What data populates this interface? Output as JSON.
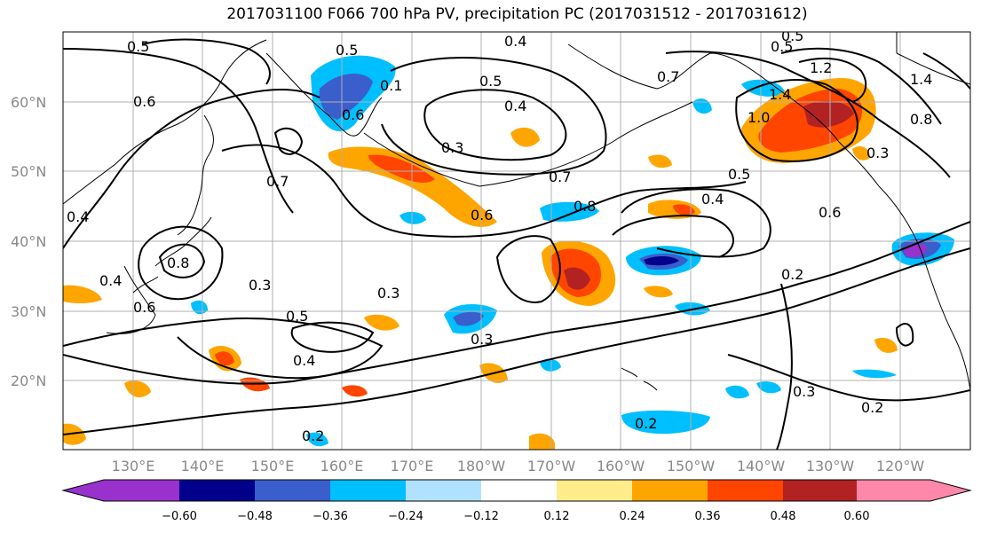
{
  "title": "2017031100 F066 700 hPa PV, precipitation PC (2017031512 - 2017031612)",
  "lat_labels": [
    "60°N",
    "50°N",
    "40°N",
    "30°N",
    "20°N"
  ],
  "lon_labels": [
    "130°E",
    "140°E",
    "150°E",
    "160°E",
    "170°E",
    "180°W",
    "170°W",
    "160°W",
    "150°W",
    "140°W",
    "130°W",
    "120°W"
  ],
  "colorbar": {
    "colors": [
      "#9932cc",
      "#00008b",
      "#3a5fcd",
      "#00bfff",
      "#b0e2ff",
      "#ffffff",
      "#ffec8b",
      "#ffa500",
      "#ff4500",
      "#b22222",
      "#ff88aa"
    ],
    "tick_labels": [
      "−0.60",
      "−0.48",
      "−0.36",
      "−0.24",
      "−0.12",
      "0.12",
      "0.24",
      "0.36",
      "0.48",
      "0.60"
    ]
  },
  "contour_labels": [
    "0.5",
    "0.5",
    "0.4",
    "0.5",
    "0.4",
    "0.7",
    "0.6",
    "0.1",
    "0.6",
    "0.3",
    "0.7",
    "0.6",
    "0.8",
    "0.7",
    "0.8",
    "0.5",
    "0.4",
    "0.5",
    "1.0",
    "1.4",
    "1.2",
    "0.8",
    "0.3",
    "0.6",
    "0.4",
    "0.4",
    "0.3",
    "0.6",
    "0.3",
    "0.5",
    "0.4",
    "0.3",
    "0.2",
    "0.3",
    "0.2",
    "0.2",
    "0.2",
    "1.4",
    "0.5"
  ],
  "shading_colors": {
    "neg_light": "#00bfff",
    "neg_mid": "#3a5fcd",
    "neg_dark": "#00008b",
    "neg_extreme": "#9932cc",
    "pos_light": "#ffec8b",
    "pos_mid": "#ffa500",
    "pos_strong": "#ff4500",
    "pos_dark": "#b22222"
  }
}
